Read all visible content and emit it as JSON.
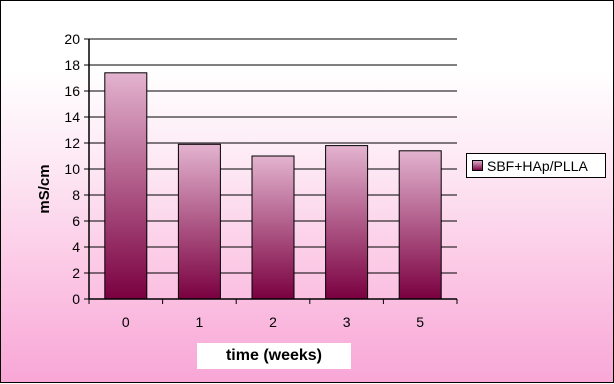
{
  "chart_data": {
    "type": "bar",
    "categories": [
      "0",
      "1",
      "2",
      "3",
      "5"
    ],
    "series": [
      {
        "name": "SBF+HAp/PLLA",
        "values": [
          17.4,
          11.9,
          11.0,
          11.8,
          11.4
        ]
      }
    ],
    "xlabel": "time (weeks)",
    "ylabel": "mS/cm",
    "ylim": [
      0,
      20
    ],
    "yticks": [
      "0",
      "2",
      "4",
      "6",
      "8",
      "10",
      "12",
      "14",
      "16",
      "18",
      "20"
    ],
    "grid": true,
    "legend_position": "right",
    "colors": {
      "bar_top": "#e3b3cf",
      "bar_bottom": "#7a0040",
      "background_bottom": "#f8a6d6"
    }
  }
}
